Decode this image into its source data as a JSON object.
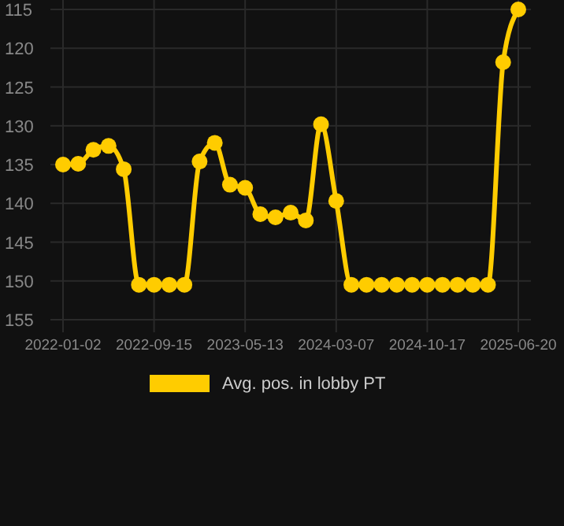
{
  "chart_data": {
    "type": "line",
    "categories": [
      "2022-01-02",
      null,
      null,
      null,
      null,
      null,
      "2022-09-15",
      null,
      null,
      null,
      null,
      null,
      "2023-05-13",
      null,
      null,
      null,
      null,
      null,
      "2024-03-07",
      null,
      null,
      null,
      null,
      null,
      "2024-10-17",
      null,
      null,
      null,
      null,
      null,
      "2025-06-20"
    ],
    "series": [
      {
        "name": "Avg. pos. in lobby PT",
        "color": "#ffcc00",
        "values": [
          135,
          134.9,
          133.1,
          132.6,
          135.6,
          150.5,
          150.5,
          150.5,
          150.5,
          134.6,
          132.2,
          137.6,
          138,
          141.4,
          141.8,
          141.2,
          142.2,
          129.8,
          139.7,
          150.5,
          150.5,
          150.5,
          150.5,
          150.5,
          150.5,
          150.5,
          150.5,
          150.5,
          150.5,
          121.8,
          115
        ]
      }
    ],
    "ylim": [
      155,
      115
    ],
    "yticks": [
      115,
      120,
      125,
      130,
      135,
      140,
      145,
      150,
      155
    ],
    "grid": true,
    "legend": "bottom",
    "marker": "circle",
    "line_style": "solid"
  }
}
